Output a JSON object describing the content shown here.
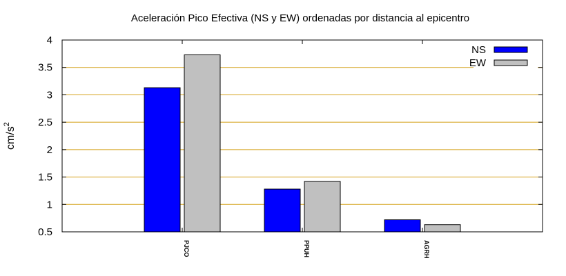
{
  "chart_data": {
    "type": "bar",
    "title": "Aceleración Pico Efectiva (NS y EW) ordenadas por distancia al epicentro",
    "ylabel": "cm/s",
    "ylabel_sup": "2",
    "xlabel": "",
    "categories": [
      "PJCO",
      "PPUH",
      "AGRH"
    ],
    "series": [
      {
        "name": "NS",
        "values": [
          3.13,
          1.28,
          0.72
        ],
        "color": "#0000ff"
      },
      {
        "name": "EW",
        "values": [
          3.73,
          1.42,
          0.63
        ],
        "color": "#c0c0c0"
      }
    ],
    "ylim": [
      0.5,
      4
    ],
    "yticks": [
      "0.5",
      "1",
      "1.5",
      "2",
      "2.5",
      "3",
      "3.5",
      "4"
    ],
    "ytick_values": [
      0.5,
      1,
      1.5,
      2,
      2.5,
      3,
      3.5,
      4
    ],
    "grid": true,
    "grid_color": "#d4a017",
    "legend_position": "top-right"
  }
}
